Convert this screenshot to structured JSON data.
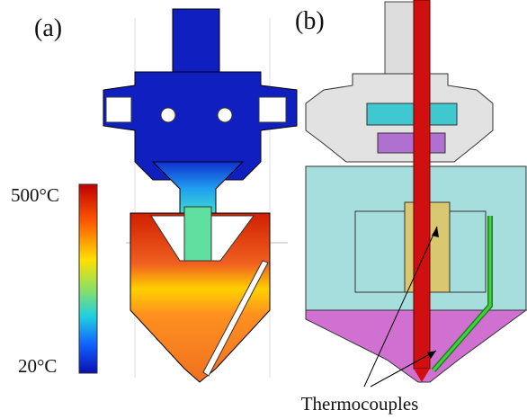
{
  "panels": [
    {
      "label": "(a)",
      "scale_max": "500°C",
      "scale_min": "20°C"
    },
    {
      "label": "(b)",
      "annotation": "Thermocouples"
    }
  ]
}
